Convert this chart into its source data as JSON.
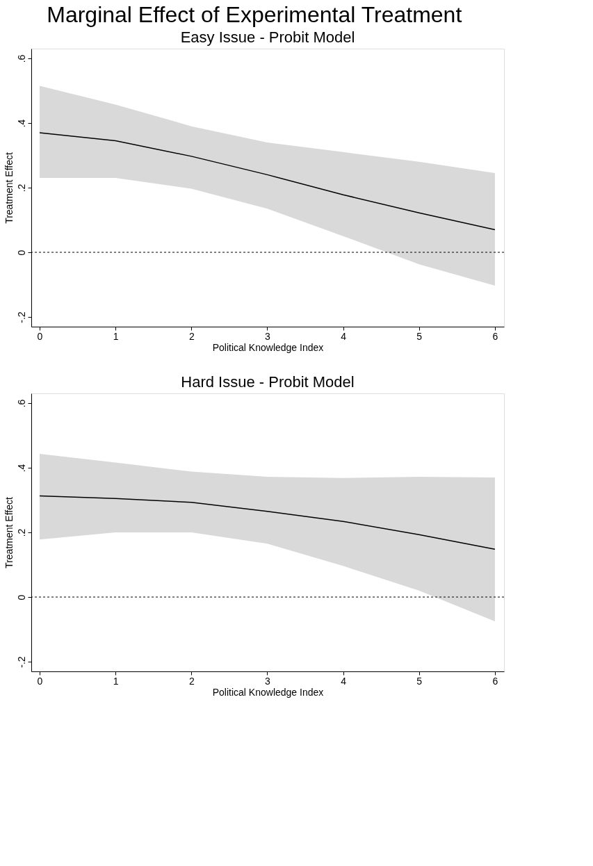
{
  "chart_data": [
    {
      "type": "line",
      "title": "Marginal Effect of Experimental Treatment",
      "subtitle": "Easy Issue - Probit Model",
      "xlabel": "Political Knowledge Index",
      "ylabel": "Treatment Effect",
      "x": [
        0,
        1,
        2,
        3,
        4,
        5,
        6
      ],
      "series": [
        {
          "color": "#000000",
          "values": [
            0.37,
            0.345,
            0.297,
            0.24,
            0.178,
            0.122,
            0.07
          ],
          "lower": [
            0.23,
            0.23,
            0.197,
            0.135,
            0.05,
            -0.037,
            -0.103
          ],
          "upper": [
            0.515,
            0.457,
            0.39,
            0.34,
            0.31,
            0.28,
            0.245
          ]
        }
      ],
      "xlim": [
        -0.11,
        6.12
      ],
      "xticks": [
        0,
        1,
        2,
        3,
        4,
        5,
        6
      ],
      "ylim": [
        -0.23,
        0.63
      ],
      "yticks": [
        {
          "value": -0.2,
          "label": "-.2"
        },
        {
          "value": 0,
          "label": "0"
        },
        {
          "value": 0.2,
          "label": ".2"
        },
        {
          "value": 0.4,
          "label": ".4"
        },
        {
          "value": 0.6,
          "label": ".6"
        }
      ],
      "ref_lines": [
        {
          "axis": "y",
          "value": 0,
          "line_style": "dashed"
        }
      ],
      "grid": false
    },
    {
      "type": "line",
      "subtitle": "Hard Issue - Probit Model",
      "xlabel": "Political Knowledge Index",
      "ylabel": "Treatment Effect",
      "x": [
        0,
        1,
        2,
        3,
        4,
        5,
        6
      ],
      "series": [
        {
          "color": "#000000",
          "values": [
            0.313,
            0.305,
            0.293,
            0.265,
            0.234,
            0.193,
            0.148
          ],
          "lower": [
            0.178,
            0.2,
            0.2,
            0.165,
            0.096,
            0.02,
            -0.075
          ],
          "upper": [
            0.443,
            0.416,
            0.388,
            0.372,
            0.368,
            0.372,
            0.37
          ]
        }
      ],
      "xlim": [
        -0.11,
        6.12
      ],
      "xticks": [
        0,
        1,
        2,
        3,
        4,
        5,
        6
      ],
      "ylim": [
        -0.23,
        0.63
      ],
      "yticks": [
        {
          "value": -0.2,
          "label": "-.2"
        },
        {
          "value": 0,
          "label": "0"
        },
        {
          "value": 0.2,
          "label": ".2"
        },
        {
          "value": 0.4,
          "label": ".4"
        },
        {
          "value": 0.6,
          "label": ".6"
        }
      ],
      "ref_lines": [
        {
          "axis": "y",
          "value": 0,
          "line_style": "dashed"
        }
      ],
      "grid": false
    }
  ]
}
